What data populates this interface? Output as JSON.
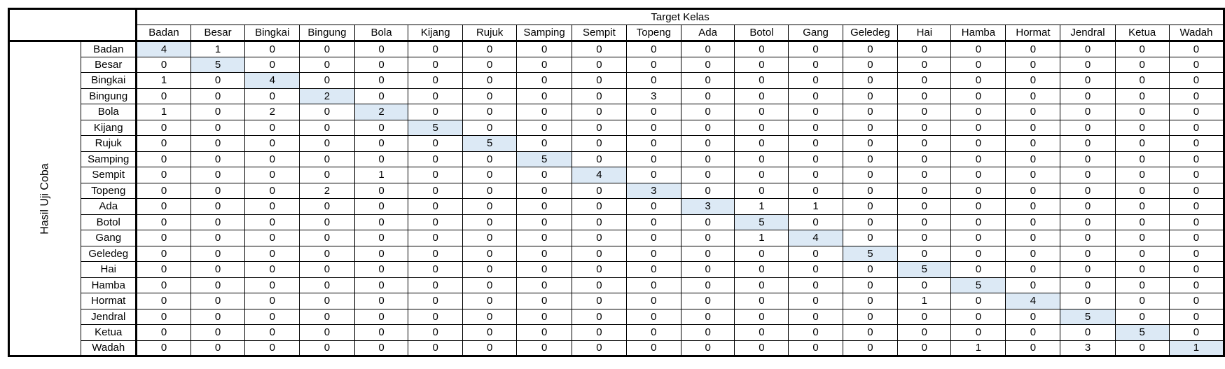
{
  "table": {
    "column_group_label": "Target Kelas",
    "row_group_label": "Hasil Uji Coba",
    "classes": [
      "Badan",
      "Besar",
      "Bingkai",
      "Bingung",
      "Bola",
      "Kijang",
      "Rujuk",
      "Samping",
      "Sempit",
      "Topeng",
      "Ada",
      "Botol",
      "Gang",
      "Geledeg",
      "Hai",
      "Hamba",
      "Hormat",
      "Jendral",
      "Ketua",
      "Wadah"
    ],
    "matrix": [
      [
        4,
        1,
        0,
        0,
        0,
        0,
        0,
        0,
        0,
        0,
        0,
        0,
        0,
        0,
        0,
        0,
        0,
        0,
        0,
        0
      ],
      [
        0,
        5,
        0,
        0,
        0,
        0,
        0,
        0,
        0,
        0,
        0,
        0,
        0,
        0,
        0,
        0,
        0,
        0,
        0,
        0
      ],
      [
        1,
        0,
        4,
        0,
        0,
        0,
        0,
        0,
        0,
        0,
        0,
        0,
        0,
        0,
        0,
        0,
        0,
        0,
        0,
        0
      ],
      [
        0,
        0,
        0,
        2,
        0,
        0,
        0,
        0,
        0,
        3,
        0,
        0,
        0,
        0,
        0,
        0,
        0,
        0,
        0,
        0
      ],
      [
        1,
        0,
        2,
        0,
        2,
        0,
        0,
        0,
        0,
        0,
        0,
        0,
        0,
        0,
        0,
        0,
        0,
        0,
        0,
        0
      ],
      [
        0,
        0,
        0,
        0,
        0,
        5,
        0,
        0,
        0,
        0,
        0,
        0,
        0,
        0,
        0,
        0,
        0,
        0,
        0,
        0
      ],
      [
        0,
        0,
        0,
        0,
        0,
        0,
        5,
        0,
        0,
        0,
        0,
        0,
        0,
        0,
        0,
        0,
        0,
        0,
        0,
        0
      ],
      [
        0,
        0,
        0,
        0,
        0,
        0,
        0,
        5,
        0,
        0,
        0,
        0,
        0,
        0,
        0,
        0,
        0,
        0,
        0,
        0
      ],
      [
        0,
        0,
        0,
        0,
        1,
        0,
        0,
        0,
        4,
        0,
        0,
        0,
        0,
        0,
        0,
        0,
        0,
        0,
        0,
        0
      ],
      [
        0,
        0,
        0,
        2,
        0,
        0,
        0,
        0,
        0,
        3,
        0,
        0,
        0,
        0,
        0,
        0,
        0,
        0,
        0,
        0
      ],
      [
        0,
        0,
        0,
        0,
        0,
        0,
        0,
        0,
        0,
        0,
        3,
        1,
        1,
        0,
        0,
        0,
        0,
        0,
        0,
        0
      ],
      [
        0,
        0,
        0,
        0,
        0,
        0,
        0,
        0,
        0,
        0,
        0,
        5,
        0,
        0,
        0,
        0,
        0,
        0,
        0,
        0
      ],
      [
        0,
        0,
        0,
        0,
        0,
        0,
        0,
        0,
        0,
        0,
        0,
        1,
        4,
        0,
        0,
        0,
        0,
        0,
        0,
        0
      ],
      [
        0,
        0,
        0,
        0,
        0,
        0,
        0,
        0,
        0,
        0,
        0,
        0,
        0,
        5,
        0,
        0,
        0,
        0,
        0,
        0
      ],
      [
        0,
        0,
        0,
        0,
        0,
        0,
        0,
        0,
        0,
        0,
        0,
        0,
        0,
        0,
        5,
        0,
        0,
        0,
        0,
        0
      ],
      [
        0,
        0,
        0,
        0,
        0,
        0,
        0,
        0,
        0,
        0,
        0,
        0,
        0,
        0,
        0,
        5,
        0,
        0,
        0,
        0
      ],
      [
        0,
        0,
        0,
        0,
        0,
        0,
        0,
        0,
        0,
        0,
        0,
        0,
        0,
        0,
        1,
        0,
        4,
        0,
        0,
        0
      ],
      [
        0,
        0,
        0,
        0,
        0,
        0,
        0,
        0,
        0,
        0,
        0,
        0,
        0,
        0,
        0,
        0,
        0,
        5,
        0,
        0
      ],
      [
        0,
        0,
        0,
        0,
        0,
        0,
        0,
        0,
        0,
        0,
        0,
        0,
        0,
        0,
        0,
        0,
        0,
        0,
        5,
        0
      ],
      [
        0,
        0,
        0,
        0,
        0,
        0,
        0,
        0,
        0,
        0,
        0,
        0,
        0,
        0,
        0,
        1,
        0,
        3,
        0,
        1
      ]
    ],
    "diagonal_highlight_color": "#dce9f5",
    "border_color": "#000000"
  }
}
